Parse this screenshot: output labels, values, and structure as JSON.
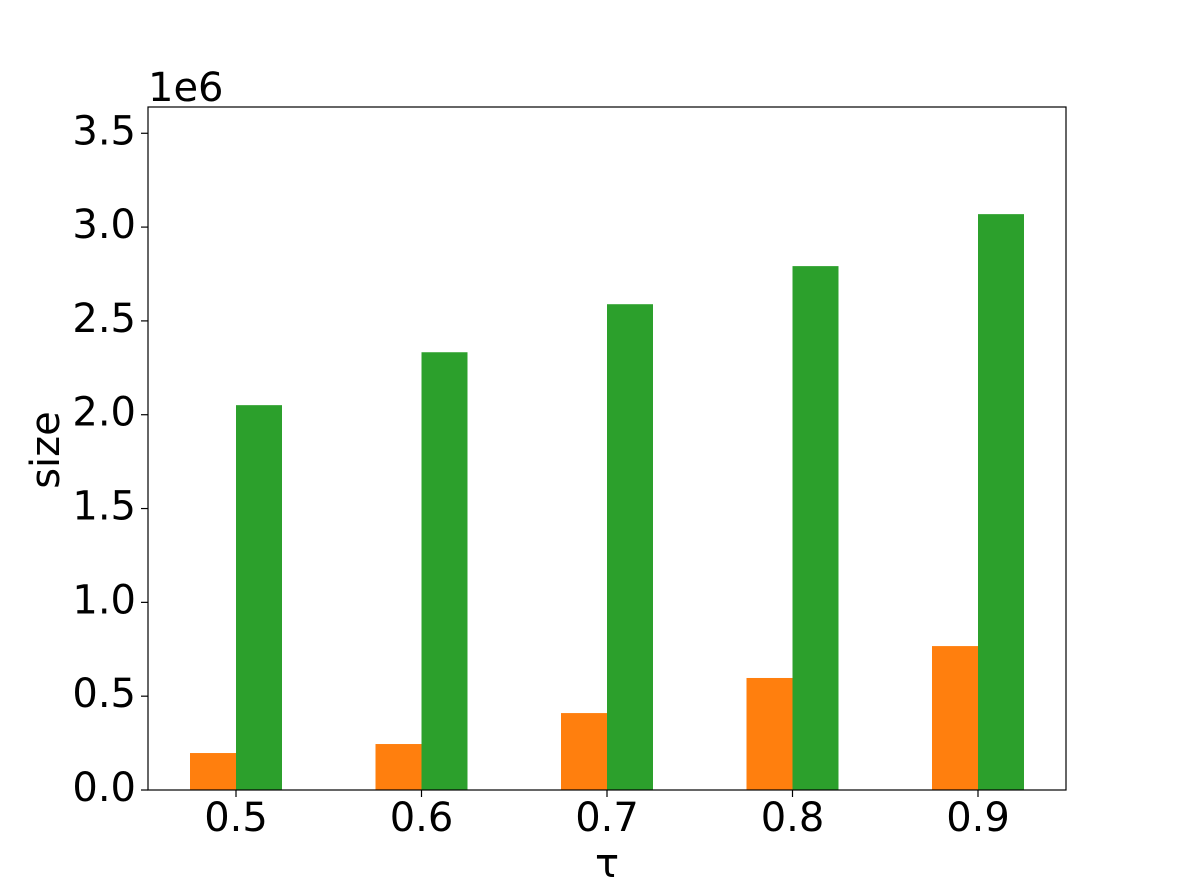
{
  "chart_data": {
    "type": "bar",
    "y_label": "size",
    "x_label": "τ",
    "y_offset_label": "1e6",
    "categories": [
      "0.5",
      "0.6",
      "0.7",
      "0.8",
      "0.9"
    ],
    "series": [
      {
        "color": "#ff7f0e",
        "values": [
          0.197,
          0.245,
          0.41,
          0.597,
          0.767
        ]
      },
      {
        "color": "#2ca02c",
        "values": [
          2.051,
          2.333,
          2.589,
          2.792,
          3.069
        ]
      }
    ],
    "ylim": [
      0,
      3.64
    ],
    "yticks": [
      {
        "value": 0,
        "label": "0.0"
      },
      {
        "value": 0.5,
        "label": "0.5"
      },
      {
        "value": 1,
        "label": "1.0"
      },
      {
        "value": 1.5,
        "label": "1.5"
      },
      {
        "value": 2,
        "label": "2.0"
      },
      {
        "value": 2.5,
        "label": "2.5"
      },
      {
        "value": 3,
        "label": "3.0"
      },
      {
        "value": 3.5,
        "label": "3.5"
      }
    ],
    "grid": false
  }
}
